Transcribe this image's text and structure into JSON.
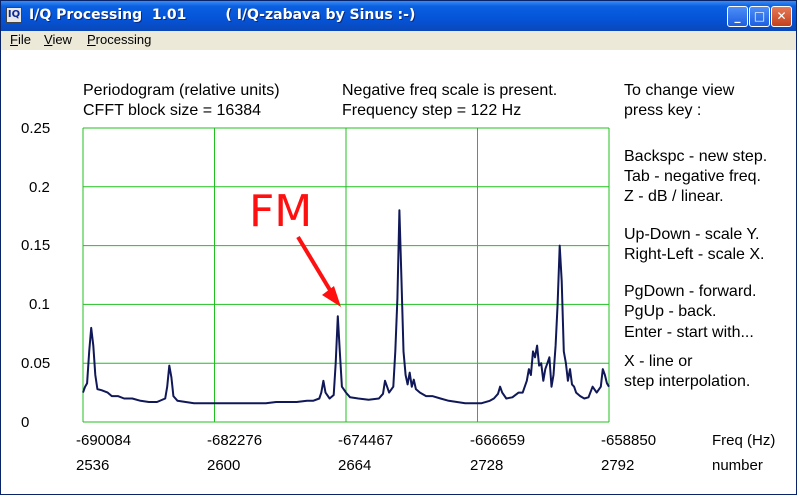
{
  "window": {
    "title": "I/Q Processing  1.01",
    "subtitle": "( I/Q-zabava by Sinus :-)",
    "icon_label": "IQ",
    "buttons": {
      "minimize": "_",
      "maximize": "□",
      "close": "✕"
    }
  },
  "menu": [
    {
      "label": "File"
    },
    {
      "label": "View"
    },
    {
      "label": "Processing"
    }
  ],
  "info": {
    "line1": "Periodogram  (relative units)",
    "line2": "CFFT block size =  16384",
    "line3": "Negative freq scale is present.",
    "line4": "Frequency step =  122  Hz"
  },
  "help": {
    "title1": "To change view",
    "title2": "press key :",
    "keys": [
      "Backspc - new step.",
      "Tab - negative freq.",
      "Z  -  dB / linear.",
      "Up-Down  - scale Y.",
      "Right-Left - scale X.",
      "PgDown  -  forward.",
      "PgUp   -  back.",
      "Enter  - start with...",
      "X   -    line or",
      "step interpolation."
    ]
  },
  "annotation": {
    "label": "FM",
    "color": "#ff1010"
  },
  "colors": {
    "grid": "#20c020",
    "trace": "#101858"
  },
  "chart_data": {
    "type": "line",
    "title": "",
    "xlabel": "Freq (Hz)",
    "x2label": "number",
    "ylim": [
      0,
      0.25
    ],
    "yticks": [
      "0.25",
      "0.2",
      "0.15",
      "0.1",
      "0.05",
      "0"
    ],
    "xticks_freq": [
      "-690084",
      "-682276",
      "-674467",
      "-666659",
      "-658850"
    ],
    "xticks_number": [
      "2536",
      "2600",
      "2664",
      "2728",
      "2792"
    ],
    "xlim_number": [
      2536,
      2792
    ],
    "grid": true,
    "series": [
      {
        "points": [
          [
            2536,
            0.025
          ],
          [
            2537,
            0.03
          ],
          [
            2538,
            0.033
          ],
          [
            2539,
            0.06
          ],
          [
            2540,
            0.08
          ],
          [
            2541,
            0.065
          ],
          [
            2542,
            0.04
          ],
          [
            2543,
            0.028
          ],
          [
            2545,
            0.027
          ],
          [
            2548,
            0.025
          ],
          [
            2550,
            0.022
          ],
          [
            2553,
            0.022
          ],
          [
            2556,
            0.02
          ],
          [
            2560,
            0.02
          ],
          [
            2564,
            0.018
          ],
          [
            2568,
            0.017
          ],
          [
            2572,
            0.017
          ],
          [
            2576,
            0.02
          ],
          [
            2577,
            0.03
          ],
          [
            2578,
            0.048
          ],
          [
            2579,
            0.038
          ],
          [
            2580,
            0.022
          ],
          [
            2582,
            0.018
          ],
          [
            2586,
            0.017
          ],
          [
            2590,
            0.016
          ],
          [
            2595,
            0.016
          ],
          [
            2600,
            0.016
          ],
          [
            2605,
            0.016
          ],
          [
            2610,
            0.016
          ],
          [
            2615,
            0.016
          ],
          [
            2620,
            0.016
          ],
          [
            2625,
            0.016
          ],
          [
            2630,
            0.017
          ],
          [
            2635,
            0.017
          ],
          [
            2640,
            0.017
          ],
          [
            2645,
            0.018
          ],
          [
            2648,
            0.018
          ],
          [
            2651,
            0.02
          ],
          [
            2652,
            0.025
          ],
          [
            2653,
            0.035
          ],
          [
            2654,
            0.025
          ],
          [
            2656,
            0.02
          ],
          [
            2658,
            0.023
          ],
          [
            2659,
            0.05
          ],
          [
            2660,
            0.09
          ],
          [
            2661,
            0.06
          ],
          [
            2662,
            0.03
          ],
          [
            2664,
            0.025
          ],
          [
            2666,
            0.021
          ],
          [
            2670,
            0.02
          ],
          [
            2675,
            0.019
          ],
          [
            2680,
            0.02
          ],
          [
            2682,
            0.024
          ],
          [
            2683,
            0.035
          ],
          [
            2684,
            0.03
          ],
          [
            2685,
            0.025
          ],
          [
            2687,
            0.03
          ],
          [
            2688,
            0.06
          ],
          [
            2689,
            0.105
          ],
          [
            2690,
            0.18
          ],
          [
            2691,
            0.12
          ],
          [
            2692,
            0.06
          ],
          [
            2693,
            0.04
          ],
          [
            2694,
            0.032
          ],
          [
            2695,
            0.042
          ],
          [
            2696,
            0.03
          ],
          [
            2697,
            0.036
          ],
          [
            2698,
            0.028
          ],
          [
            2700,
            0.025
          ],
          [
            2703,
            0.022
          ],
          [
            2706,
            0.022
          ],
          [
            2710,
            0.02
          ],
          [
            2714,
            0.018
          ],
          [
            2718,
            0.017
          ],
          [
            2722,
            0.016
          ],
          [
            2726,
            0.016
          ],
          [
            2730,
            0.016
          ],
          [
            2734,
            0.018
          ],
          [
            2736,
            0.02
          ],
          [
            2738,
            0.024
          ],
          [
            2739,
            0.03
          ],
          [
            2740,
            0.025
          ],
          [
            2742,
            0.02
          ],
          [
            2745,
            0.021
          ],
          [
            2748,
            0.025
          ],
          [
            2750,
            0.025
          ],
          [
            2752,
            0.035
          ],
          [
            2753,
            0.045
          ],
          [
            2754,
            0.04
          ],
          [
            2755,
            0.06
          ],
          [
            2756,
            0.055
          ],
          [
            2757,
            0.065
          ],
          [
            2758,
            0.048
          ],
          [
            2759,
            0.05
          ],
          [
            2760,
            0.035
          ],
          [
            2761,
            0.045
          ],
          [
            2762,
            0.05
          ],
          [
            2763,
            0.055
          ],
          [
            2764,
            0.03
          ],
          [
            2765,
            0.04
          ],
          [
            2766,
            0.065
          ],
          [
            2767,
            0.1
          ],
          [
            2768,
            0.15
          ],
          [
            2769,
            0.12
          ],
          [
            2770,
            0.06
          ],
          [
            2771,
            0.05
          ],
          [
            2772,
            0.035
          ],
          [
            2773,
            0.045
          ],
          [
            2774,
            0.032
          ],
          [
            2775,
            0.03
          ],
          [
            2776,
            0.025
          ],
          [
            2778,
            0.022
          ],
          [
            2780,
            0.02
          ],
          [
            2782,
            0.021
          ],
          [
            2784,
            0.03
          ],
          [
            2786,
            0.025
          ],
          [
            2788,
            0.03
          ],
          [
            2789,
            0.045
          ],
          [
            2790,
            0.04
          ],
          [
            2791,
            0.033
          ],
          [
            2792,
            0.03
          ]
        ]
      }
    ]
  }
}
